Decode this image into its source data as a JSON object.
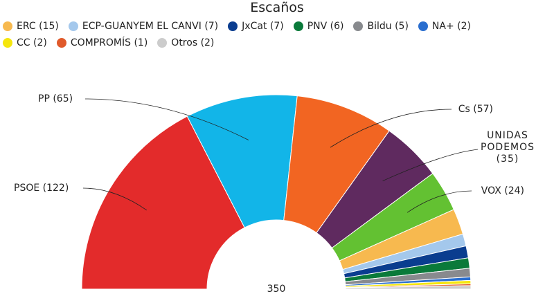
{
  "chart_data": {
    "type": "parliament",
    "title": "Escaños",
    "categories": [
      "PSOE (122)",
      "PP (65)",
      "Cs (57)",
      "UNIDAS PODEMOS (35)",
      "VOX (24)",
      "ERC (15)",
      "ECP-GUANYEM EL CANVI (7)",
      "JxCat (7)",
      "PNV (6)",
      "Bildu (5)",
      "NA+ (2)",
      "CC (2)",
      "COMPROMÍS (1)",
      "Otros (2)"
    ],
    "values": [
      122,
      65,
      57,
      35,
      24,
      15,
      7,
      7,
      6,
      5,
      2,
      2,
      1,
      2
    ],
    "colors": [
      "#e32b2b",
      "#12b5e8",
      "#f26522",
      "#5f2a5f",
      "#63c132",
      "#f7b94f",
      "#a4c8ec",
      "#0a3d8f",
      "#0a7a3a",
      "#888a8e",
      "#2a6ecf",
      "#f5e60d",
      "#e05a2b",
      "#cccccc"
    ],
    "total": 350
  }
}
